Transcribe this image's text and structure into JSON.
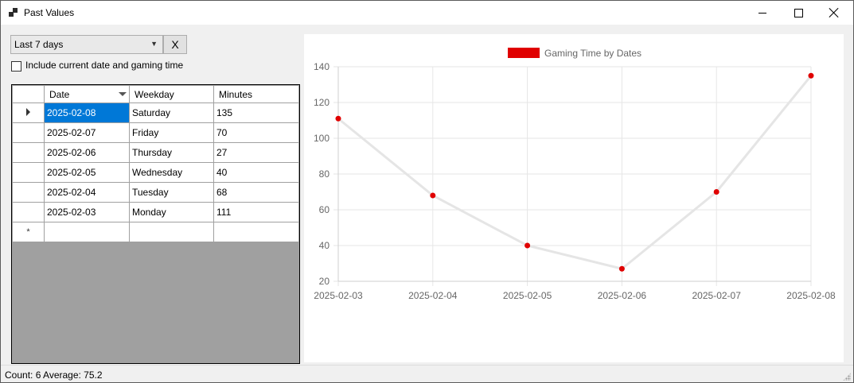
{
  "window": {
    "title": "Past Values",
    "icon": "app-icon"
  },
  "controls": {
    "range_selected": "Last 7 days",
    "clear_label": "X",
    "include_label": "Include current date and gaming time",
    "include_checked": false
  },
  "grid": {
    "headers": [
      "Date",
      "Weekday",
      "Minutes"
    ],
    "rows": [
      {
        "date": "2025-02-08",
        "weekday": "Saturday",
        "minutes": "135"
      },
      {
        "date": "2025-02-07",
        "weekday": "Friday",
        "minutes": "70"
      },
      {
        "date": "2025-02-06",
        "weekday": "Thursday",
        "minutes": "27"
      },
      {
        "date": "2025-02-05",
        "weekday": "Wednesday",
        "minutes": "40"
      },
      {
        "date": "2025-02-04",
        "weekday": "Tuesday",
        "minutes": "68"
      },
      {
        "date": "2025-02-03",
        "weekday": "Monday",
        "minutes": "111"
      }
    ],
    "new_row_marker": "*"
  },
  "status": {
    "text": "Count:  6  Average:  75.2"
  },
  "chart_data": {
    "type": "line",
    "legend": "Gaming Time by Dates",
    "legend_position": "top",
    "categories": [
      "2025-02-03",
      "2025-02-04",
      "2025-02-05",
      "2025-02-06",
      "2025-02-07",
      "2025-02-08"
    ],
    "series": [
      {
        "name": "Gaming Time by Dates",
        "values": [
          111,
          68,
          40,
          27,
          70,
          135
        ]
      }
    ],
    "ylim": [
      20,
      140
    ],
    "yticks": [
      20,
      40,
      60,
      80,
      100,
      120,
      140
    ],
    "grid": true,
    "colors": {
      "point": "#e00000",
      "line": "#e5e5e5",
      "legend_box": "#e00000"
    }
  }
}
